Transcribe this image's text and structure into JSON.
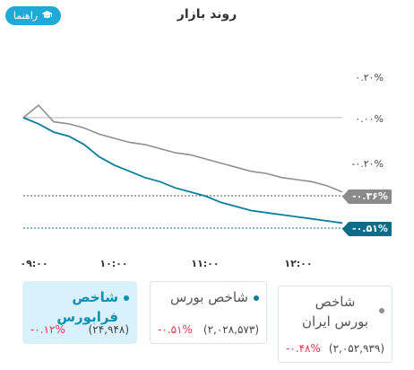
{
  "header": {
    "guide_label": "راهنما",
    "title": "روند بازار"
  },
  "chart": {
    "y_ticks": [
      "۰.۲۰%",
      "۰.۰۰%",
      "-۰.۲۰%"
    ],
    "x_ticks": [
      "۰۹:۰۰",
      "۱۰:۰۰",
      "۱۱:۰۰",
      "۱۲:۰۰"
    ],
    "tag_gray": "-۰.۳۶%",
    "tag_teal": "-۰.۵۱%",
    "colors": {
      "gray": "#8f8f8f",
      "teal": "#0a7e9a",
      "tag_gray": "#8a8a8a",
      "tag_teal": "#0a6c89"
    }
  },
  "chart_data": {
    "type": "line",
    "x": [
      "09:00",
      "09:10",
      "09:20",
      "09:30",
      "09:40",
      "09:50",
      "10:00",
      "10:10",
      "10:20",
      "10:30",
      "10:40",
      "10:50",
      "11:00",
      "11:10",
      "11:20",
      "11:30",
      "11:40",
      "11:50",
      "12:00",
      "12:10",
      "12:20",
      "12:30"
    ],
    "series": [
      {
        "name": "شاخص بورس",
        "values": [
          0.0,
          0.06,
          -0.02,
          -0.03,
          -0.05,
          -0.08,
          -0.1,
          -0.12,
          -0.13,
          -0.15,
          -0.17,
          -0.18,
          -0.2,
          -0.22,
          -0.24,
          -0.26,
          -0.27,
          -0.29,
          -0.3,
          -0.31,
          -0.33,
          -0.36
        ]
      },
      {
        "name": "شاخص فرابورس",
        "values": [
          0.0,
          -0.03,
          -0.07,
          -0.09,
          -0.13,
          -0.19,
          -0.23,
          -0.26,
          -0.29,
          -0.31,
          -0.34,
          -0.36,
          -0.38,
          -0.41,
          -0.43,
          -0.45,
          -0.46,
          -0.47,
          -0.48,
          -0.49,
          -0.5,
          -0.51
        ]
      }
    ],
    "ylim": [
      -0.52,
      0.24
    ],
    "grid": false
  },
  "cards": [
    {
      "name": "شاخص فرابورس",
      "value": "(۲۴,۹۴۸)",
      "change": "-۰.۱۲%",
      "active": true,
      "dot_color": "#0a8fb5"
    },
    {
      "name": "شاخص بورس",
      "value": "(۲,۰۲۸,۵۷۳)",
      "change": "-۰.۵۱%",
      "active": false,
      "dot_color": "#0a7e9a"
    },
    {
      "name": "شاخص بورس ایران",
      "value": "(۲,۰۵۲,۹۳۹)",
      "change": "-۰.۴۸%",
      "active": false,
      "dot_color": "#8f8f8f"
    }
  ]
}
